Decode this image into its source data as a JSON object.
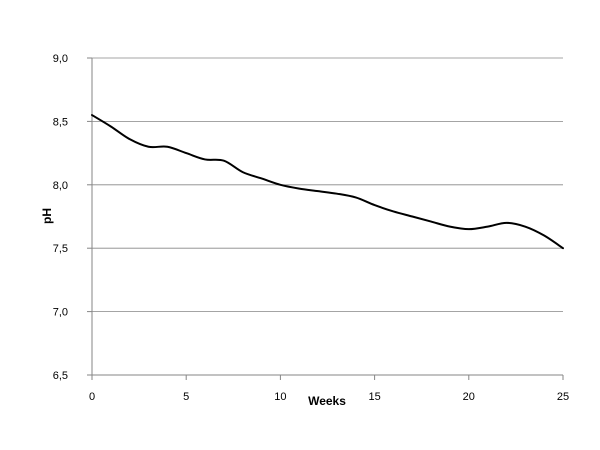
{
  "chart_data": {
    "type": "line",
    "title": "",
    "xlabel": "Weeks",
    "ylabel": "pH",
    "xlim": [
      0,
      25
    ],
    "ylim": [
      6.5,
      9.0
    ],
    "x_ticks": [
      0,
      5,
      10,
      15,
      20,
      25
    ],
    "x_tick_labels": [
      "0",
      "5",
      "10",
      "15",
      "20",
      "25"
    ],
    "y_ticks": [
      6.5,
      7.0,
      7.5,
      8.0,
      8.5,
      9.0
    ],
    "y_tick_labels": [
      "6,5",
      "7,0",
      "7,5",
      "8,0",
      "8,5",
      "9,0"
    ],
    "grid": "horizontal",
    "legend": "none",
    "series": [
      {
        "color": "#000000",
        "x": [
          0,
          1,
          2,
          3,
          4,
          5,
          6,
          7,
          8,
          9,
          10,
          11,
          12,
          13,
          14,
          15,
          16,
          17,
          18,
          19,
          20,
          21,
          22,
          23,
          24,
          25
        ],
        "y": [
          8.55,
          8.46,
          8.36,
          8.3,
          8.3,
          8.25,
          8.2,
          8.19,
          8.1,
          8.05,
          8.0,
          7.97,
          7.95,
          7.93,
          7.9,
          7.84,
          7.79,
          7.75,
          7.71,
          7.67,
          7.65,
          7.67,
          7.7,
          7.67,
          7.6,
          7.5
        ]
      }
    ]
  }
}
